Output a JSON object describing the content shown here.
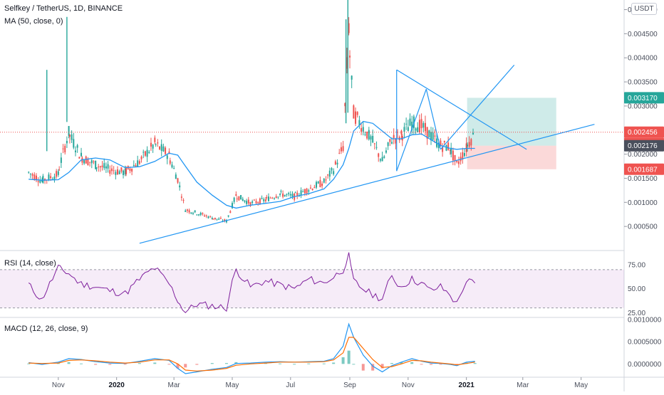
{
  "legend": {
    "symbol": "Selfkey / TetherUS, 1D, BINANCE",
    "ma": "MA (50, close, 0)",
    "rsi": "RSI (14, close)",
    "macd": "MACD (12, 26, close, 9)"
  },
  "currency_label": "USDT",
  "price_axis": [
    "0.005000",
    "0.004500",
    "0.004000",
    "0.003500",
    "0.003000",
    "0.002500",
    "0.002000",
    "0.001500",
    "0.001000",
    "0.000500"
  ],
  "rsi_axis": [
    "75.00",
    "50.00",
    "25.00"
  ],
  "macd_axis": [
    "0.0010000",
    "0.0005000",
    "0.0000000"
  ],
  "price_tags": [
    {
      "text": "0.003170",
      "color": "#26a69a"
    },
    {
      "text": "0.002456",
      "color": "#ef5350"
    },
    {
      "text": "07:35:25",
      "color": "#ef5350"
    },
    {
      "text": "0.002176",
      "color": "#4a4f5c"
    },
    {
      "text": "0.001687",
      "color": "#ef5350"
    }
  ],
  "time_axis": [
    {
      "label": "Nov",
      "bold": false
    },
    {
      "label": "2020",
      "bold": true
    },
    {
      "label": "Mar",
      "bold": false
    },
    {
      "label": "May",
      "bold": false
    },
    {
      "label": "Jul",
      "bold": false
    },
    {
      "label": "Sep",
      "bold": false
    },
    {
      "label": "Nov",
      "bold": false
    },
    {
      "label": "2021",
      "bold": true
    },
    {
      "label": "Mar",
      "bold": false
    },
    {
      "label": "May",
      "bold": false
    }
  ],
  "chart_data": {
    "type": "line",
    "title": "Selfkey / TetherUS, 1D, BINANCE",
    "x_dates": [
      "2019-10-01",
      "2019-10-15",
      "2019-11-01",
      "2019-11-12",
      "2019-11-25",
      "2019-12-10",
      "2019-12-25",
      "2020-01-10",
      "2020-01-25",
      "2020-02-10",
      "2020-02-25",
      "2020-03-05",
      "2020-03-13",
      "2020-03-25",
      "2020-04-10",
      "2020-04-25",
      "2020-05-05",
      "2020-05-20",
      "2020-06-05",
      "2020-06-20",
      "2020-07-05",
      "2020-07-20",
      "2020-08-05",
      "2020-08-15",
      "2020-08-25",
      "2020-08-31",
      "2020-09-05",
      "2020-09-15",
      "2020-09-25",
      "2020-10-05",
      "2020-10-15",
      "2020-10-25",
      "2020-11-05",
      "2020-11-15",
      "2020-11-25",
      "2020-12-05",
      "2020-12-15",
      "2020-12-22",
      "2021-01-01",
      "2021-01-10"
    ],
    "series": [
      {
        "values": [
          0.00162,
          0.00145,
          0.00158,
          0.00245,
          0.00195,
          0.00178,
          0.00168,
          0.00162,
          0.00185,
          0.00222,
          0.00198,
          0.00148,
          0.00085,
          0.00078,
          0.00068,
          0.00061,
          0.00115,
          0.00098,
          0.00105,
          0.00118,
          0.00112,
          0.00128,
          0.00142,
          0.00168,
          0.00215,
          0.00465,
          0.00285,
          0.00255,
          0.00225,
          0.00185,
          0.00232,
          0.00238,
          0.00265,
          0.00258,
          0.00238,
          0.00218,
          0.00215,
          0.00178,
          0.00212,
          0.00245
        ]
      },
      {
        "name": "MA (50, close, 0)",
        "values": [
          0.00148,
          0.00146,
          0.00147,
          0.00162,
          0.00188,
          0.00192,
          0.00188,
          0.00172,
          0.00174,
          0.00185,
          0.00202,
          0.00198,
          0.00175,
          0.00142,
          0.00115,
          0.00094,
          0.00088,
          0.00094,
          0.00098,
          0.00102,
          0.00112,
          0.00118,
          0.00128,
          0.00148,
          0.00178,
          0.00212,
          0.00248,
          0.00268,
          0.00264,
          0.00248,
          0.00232,
          0.00232,
          0.0024,
          0.00242,
          0.0023,
          0.00218,
          0.00212,
          0.0021,
          0.00212,
          0.00212
        ]
      }
    ],
    "ylim": [
      0.0,
      0.0052
    ],
    "current_price": 0.002456,
    "countdown": "07:35:25",
    "position_tool": {
      "entry": 0.002176,
      "target": 0.00317,
      "stop": 0.001687
    },
    "rsi": {
      "name": "RSI (14, close)",
      "ylim": [
        20,
        90
      ],
      "band": [
        30,
        70
      ],
      "values": [
        55,
        38,
        72,
        66,
        55,
        52,
        48,
        45,
        60,
        72,
        55,
        38,
        26,
        34,
        32,
        30,
        70,
        52,
        58,
        54,
        50,
        60,
        56,
        62,
        70,
        86,
        58,
        50,
        44,
        40,
        62,
        52,
        60,
        56,
        48,
        52,
        44,
        34,
        58,
        56
      ]
    },
    "macd": {
      "name": "MACD (12, 26, close, 9)",
      "ylim": [
        -0.0003,
        0.00105
      ],
      "macd_values": [
        3e-05,
        -1e-05,
        4e-05,
        0.00012,
        0.0001,
        5e-05,
        2e-05,
        1e-05,
        6e-05,
        0.00012,
        8e-05,
        -0.0001,
        -0.00022,
        -0.00018,
        -0.00012,
        -8e-05,
        1e-05,
        2e-05,
        4e-05,
        5e-05,
        4e-05,
        5e-05,
        6e-05,
        0.00012,
        0.0004,
        0.0009,
        0.0006,
        0.0002,
        -5e-05,
        -0.00018,
        -4e-05,
        4e-05,
        0.00012,
        6e-05,
        2e-05,
        1e-05,
        -1e-05,
        -4e-05,
        4e-05,
        6e-05
      ],
      "signal_values": [
        2e-05,
        1e-05,
        2e-05,
        8e-05,
        9e-05,
        7e-05,
        4e-05,
        2e-05,
        4e-05,
        9e-05,
        9e-05,
        0.0,
        -0.00014,
        -0.00016,
        -0.00014,
        -0.0001,
        -3e-05,
        0.0,
        2e-05,
        4e-05,
        4e-05,
        4e-05,
        5e-05,
        9e-05,
        0.00025,
        0.0006,
        0.0006,
        0.00035,
        0.0001,
        -8e-05,
        -6e-05,
        0.0,
        8e-05,
        7e-05,
        4e-05,
        2e-05,
        0.0,
        -2e-05,
        1e-05,
        4e-05
      ]
    }
  }
}
